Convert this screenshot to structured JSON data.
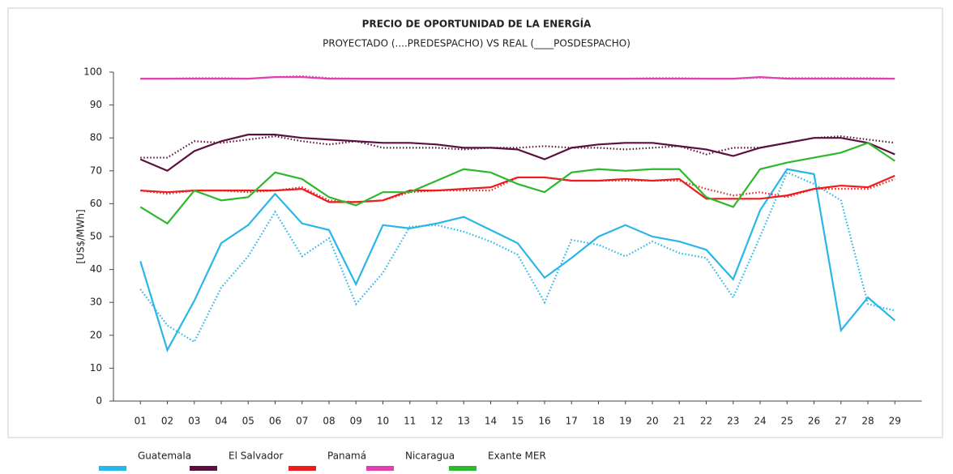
{
  "chart_data": {
    "type": "line",
    "title": "PRECIO DE OPORTUNIDAD DE LA ENERGÍA",
    "subtitle": "PROYECTADO (....PREDESPACHO) VS REAL (____POSDESPACHO)",
    "y_label": "[US$/MWh]",
    "categories": [
      "01",
      "02",
      "03",
      "04",
      "05",
      "06",
      "07",
      "08",
      "09",
      "10",
      "11",
      "12",
      "13",
      "14",
      "15",
      "16",
      "17",
      "18",
      "19",
      "20",
      "21",
      "22",
      "23",
      "24",
      "25",
      "26",
      "27",
      "28",
      "29"
    ],
    "ylim": [
      0,
      100
    ],
    "yticks": [
      0,
      10,
      20,
      30,
      40,
      50,
      60,
      70,
      80,
      90,
      100
    ],
    "grid": false,
    "legend": "bottom",
    "series": [
      {
        "name": "Guatemala",
        "color": "#29b6e8",
        "values": [
          42.5,
          15.5,
          30.5,
          48,
          53.5,
          63,
          54,
          52,
          35.5,
          53.5,
          52.5,
          54,
          56,
          52,
          48,
          37.5,
          43.5,
          50,
          53.5,
          50,
          48.5,
          46,
          37,
          58,
          70.5,
          69,
          21.5,
          31.5,
          24.5
        ],
        "projected": [
          34,
          23,
          18,
          34.5,
          44,
          57.5,
          44,
          49.5,
          29.5,
          39,
          53,
          53.5,
          51.5,
          48.5,
          44.5,
          30,
          49,
          47.5,
          44,
          48.5,
          45,
          43.5,
          31.5,
          50,
          69.5,
          66,
          61,
          29.5,
          27.5
        ]
      },
      {
        "name": "El Salvador",
        "color": "#5b1040",
        "values": [
          73.5,
          70,
          76,
          79,
          81,
          81,
          80,
          79.5,
          79,
          78.5,
          78.5,
          78,
          77,
          77,
          76.5,
          73.5,
          77,
          78,
          78.5,
          78.5,
          77.5,
          76.5,
          74.5,
          77,
          78.5,
          80,
          80,
          78.5,
          75
        ],
        "projected": [
          74,
          74,
          79,
          78.5,
          79.5,
          80.5,
          79,
          78,
          79,
          77,
          77,
          77,
          76.5,
          77,
          77,
          77.5,
          77,
          77,
          76.5,
          77,
          77.5,
          75,
          77,
          77,
          78.5,
          80,
          80.5,
          79.5,
          78.5
        ]
      },
      {
        "name": "Panamá",
        "color": "#ee1c1c",
        "values": [
          64,
          63.5,
          64,
          64,
          64,
          64,
          64.5,
          60.5,
          60.5,
          61,
          64,
          64,
          64.5,
          65,
          68,
          68,
          67,
          67,
          67.5,
          67,
          67.5,
          61.5,
          61.5,
          61.5,
          62.5,
          64.5,
          65.5,
          65,
          68.5
        ],
        "projected": [
          64,
          63,
          64,
          64,
          63.5,
          64,
          65,
          61,
          60.5,
          61,
          63.5,
          64,
          64,
          64,
          68,
          68,
          67,
          67,
          67,
          67,
          67,
          64.5,
          62.5,
          63.5,
          62,
          64.5,
          64.5,
          64.5,
          67.5
        ]
      },
      {
        "name": "Nicaragua",
        "color": "#e040b0",
        "values": [
          98,
          98,
          98,
          98,
          98,
          98.5,
          98.5,
          98,
          98,
          98,
          98,
          98,
          98,
          98,
          98,
          98,
          98,
          98,
          98,
          98,
          98,
          98,
          98,
          98.5,
          98,
          98,
          98,
          98,
          98
        ],
        "projected": [
          98,
          98,
          98.2,
          98.2,
          98,
          98.5,
          98.8,
          98.2,
          98,
          98,
          98,
          98,
          98,
          98,
          98,
          98,
          98,
          98,
          98,
          98.2,
          98.2,
          98,
          98,
          98.3,
          98.2,
          98.2,
          98.2,
          98.2,
          98
        ]
      },
      {
        "name": "Exante MER",
        "color": "#2db82d",
        "values": [
          59,
          54,
          64,
          61,
          62,
          69.5,
          67.5,
          62,
          59.5,
          63.5,
          63.5,
          67,
          70.5,
          69.5,
          66,
          63.5,
          69.5,
          70.5,
          70,
          70.5,
          70.5,
          62,
          59,
          70.5,
          72.5,
          74,
          75.5,
          78.5,
          73
        ]
      }
    ]
  }
}
